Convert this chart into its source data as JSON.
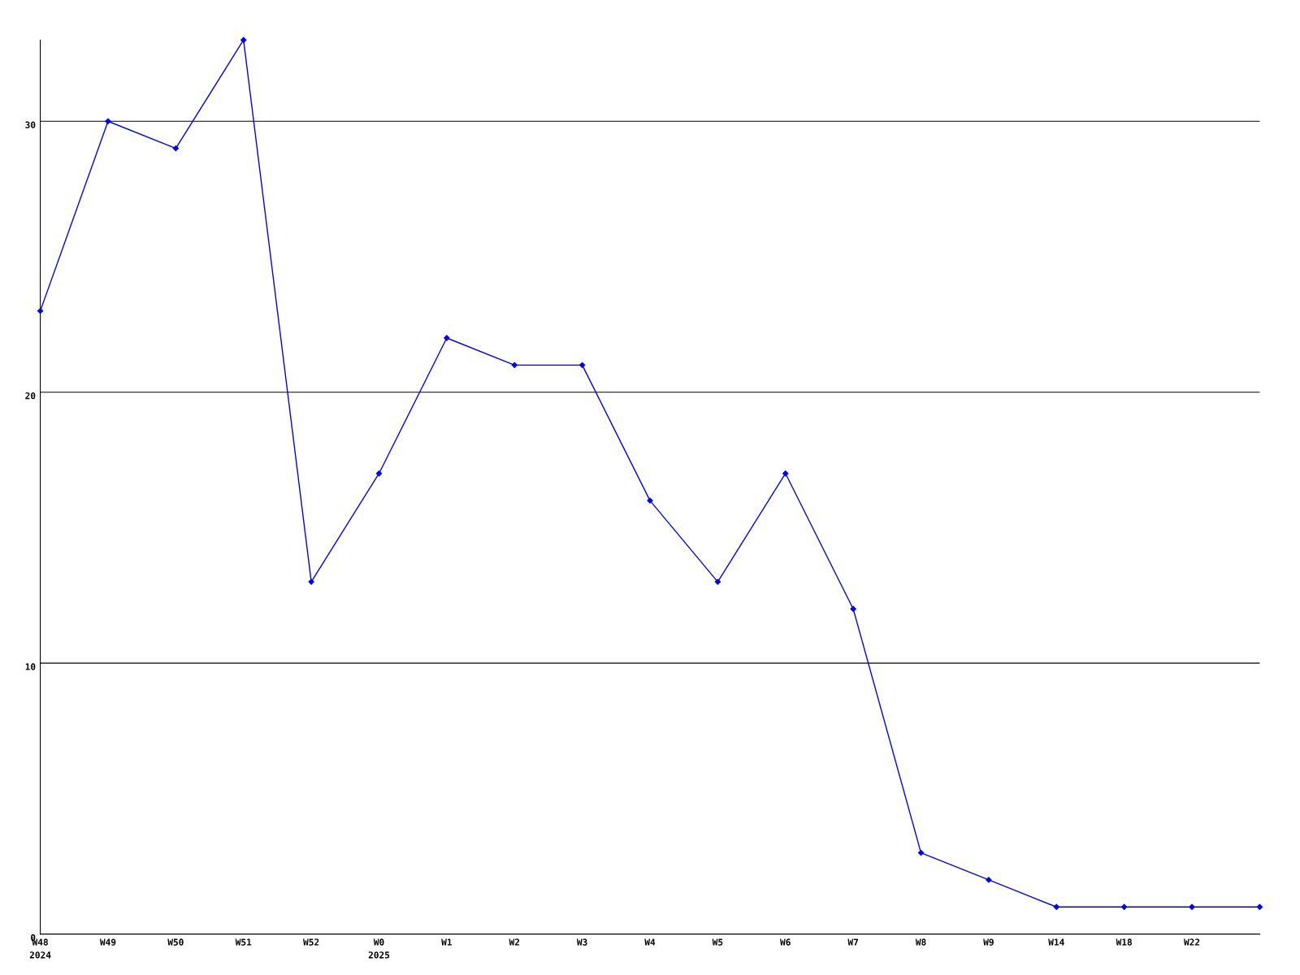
{
  "chart_data": {
    "type": "line",
    "categories": [
      "W48\n2024",
      "W49",
      "W50",
      "W51",
      "W52",
      "W0\n2025",
      "W1",
      "W2",
      "W3",
      "W4",
      "W5",
      "W6",
      "W7",
      "W8",
      "W9",
      "W14",
      "W18",
      "W22",
      null
    ],
    "series": [
      {
        "color": "#0000ff",
        "values": [
          23,
          30,
          29,
          33,
          13,
          17,
          22,
          21,
          21,
          16,
          13,
          17,
          12,
          3,
          2,
          1,
          1,
          1,
          1
        ]
      }
    ],
    "ylim": [
      0,
      33
    ],
    "yticks": [
      0,
      10,
      20,
      30
    ],
    "grid": "y",
    "marker": "diamond",
    "line_style": "solid",
    "legend": false
  }
}
